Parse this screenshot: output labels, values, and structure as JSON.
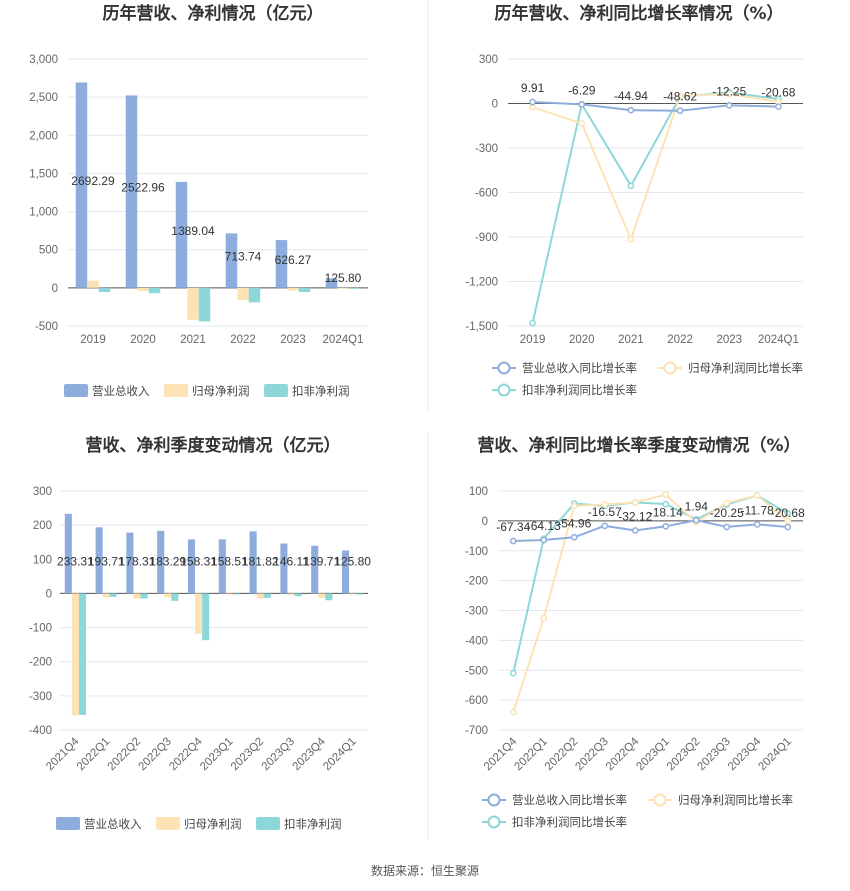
{
  "source": "数据来源：恒生聚源",
  "colors": {
    "revenue": "#8eaddd",
    "net_profit": "#fde3b4",
    "deducted_profit": "#8ed7d9",
    "revenue_line": "#8eaddd",
    "net_profit_line": "#fde3b4",
    "deducted_profit_line": "#8ed7d9"
  },
  "chart_data": [
    {
      "type": "bar",
      "title": "历年营收、净利情况（亿元）",
      "categories": [
        "2019",
        "2020",
        "2021",
        "2022",
        "2023",
        "2024Q1"
      ],
      "ylim": [
        -500,
        3000
      ],
      "yticks": [
        "3,000",
        "2,500",
        "2,000",
        "1,500",
        "1,000",
        "500",
        "0",
        "-500"
      ],
      "ytick_values": [
        3000,
        2500,
        2000,
        1500,
        1000,
        500,
        0,
        -500
      ],
      "series": [
        {
          "name": "营业总收入",
          "values": [
            2692.29,
            2522.96,
            1389.04,
            713.74,
            626.27,
            125.8
          ],
          "labels": [
            "2692.29",
            "2522.96",
            "1389.04",
            "713.74",
            "626.27",
            "125.80"
          ]
        },
        {
          "name": "归母净利润",
          "values": [
            95,
            -40,
            -420,
            -160,
            -35,
            -5
          ]
        },
        {
          "name": "扣非净利润",
          "values": [
            -55,
            -70,
            -440,
            -190,
            -55,
            -5
          ]
        }
      ],
      "legend": "bottom",
      "grid": true
    },
    {
      "type": "line",
      "title": "历年营收、净利同比增长率情况（%）",
      "categories": [
        "2019",
        "2020",
        "2021",
        "2022",
        "2023",
        "2024Q1"
      ],
      "ylim": [
        -1500,
        300
      ],
      "yticks": [
        "300",
        "0",
        "-300",
        "-600",
        "-900",
        "-1,200",
        "-1,500"
      ],
      "ytick_values": [
        300,
        0,
        -300,
        -600,
        -900,
        -1200,
        -1500
      ],
      "series": [
        {
          "name": "营业总收入同比增长率",
          "values": [
            9.91,
            -6.29,
            -44.94,
            -48.62,
            -12.25,
            -20.68
          ],
          "labels": [
            "9.91",
            "-6.29",
            "-44.94",
            "-48.62",
            "-12.25",
            "-20.68"
          ]
        },
        {
          "name": "归母净利润同比增长率",
          "values": [
            -25,
            -135,
            -915,
            50,
            65,
            10
          ]
        },
        {
          "name": "扣非净利润同比增长率",
          "values": [
            -1480,
            -5,
            -555,
            45,
            75,
            30
          ]
        }
      ],
      "legend": "bottom",
      "grid": true
    },
    {
      "type": "bar",
      "title": "营收、净利季度变动情况（亿元）",
      "categories": [
        "2021Q4",
        "2022Q1",
        "2022Q2",
        "2022Q3",
        "2022Q4",
        "2023Q1",
        "2023Q2",
        "2023Q3",
        "2023Q4",
        "2024Q1"
      ],
      "ylim": [
        -400,
        300
      ],
      "yticks": [
        "300",
        "200",
        "100",
        "0",
        "-100",
        "-200",
        "-300",
        "-400"
      ],
      "ytick_values": [
        300,
        200,
        100,
        0,
        -100,
        -200,
        -300,
        -400
      ],
      "series": [
        {
          "name": "营业总收入",
          "values": [
            233.31,
            193.71,
            178.31,
            183.29,
            158.31,
            158.51,
            181.82,
            146.11,
            139.71,
            125.8
          ],
          "labels": [
            "233.31",
            "193.71",
            "178.31",
            "183.29",
            "158.31",
            "158.51",
            "181.82",
            "146.11",
            "139.71",
            "125.80"
          ]
        },
        {
          "name": "归母净利润",
          "values": [
            -357,
            -12,
            -15,
            -12,
            -118,
            -3,
            -15,
            -5,
            -13,
            -3
          ]
        },
        {
          "name": "扣非净利润",
          "values": [
            -356,
            -10,
            -15,
            -22,
            -137,
            -3,
            -13,
            -8,
            -20,
            -3
          ]
        }
      ],
      "legend": "bottom",
      "grid": true
    },
    {
      "type": "line",
      "title": "营收、净利同比增长率季度变动情况（%）",
      "categories": [
        "2021Q4",
        "2022Q1",
        "2022Q2",
        "2022Q3",
        "2022Q4",
        "2023Q1",
        "2023Q2",
        "2023Q3",
        "2023Q4",
        "2024Q1"
      ],
      "ylim": [
        -700,
        100
      ],
      "yticks": [
        "100",
        "0",
        "-100",
        "-200",
        "-300",
        "-400",
        "-500",
        "-600",
        "-700"
      ],
      "ytick_values": [
        100,
        0,
        -100,
        -200,
        -300,
        -400,
        -500,
        -600,
        -700
      ],
      "series": [
        {
          "name": "营业总收入同比增长率",
          "values": [
            -67.34,
            -64.13,
            -54.96,
            -16.57,
            -32.12,
            -18.14,
            1.94,
            -20.25,
            -11.78,
            -20.68
          ],
          "labels": [
            "-67.34",
            "-64.13",
            "-54.96",
            "-16.57",
            "-32.12",
            "-18.14",
            "1.94",
            "-20.25",
            "-11.78",
            "-20.68"
          ]
        },
        {
          "name": "归母净利润同比增长率",
          "values": [
            -640,
            -325,
            50,
            55,
            62,
            88,
            -5,
            60,
            85,
            0
          ]
        },
        {
          "name": "扣非净利润同比增长率",
          "values": [
            -510,
            -60,
            58,
            50,
            62,
            56,
            5,
            55,
            85,
            25
          ]
        }
      ],
      "legend": "bottom",
      "grid": true
    }
  ]
}
